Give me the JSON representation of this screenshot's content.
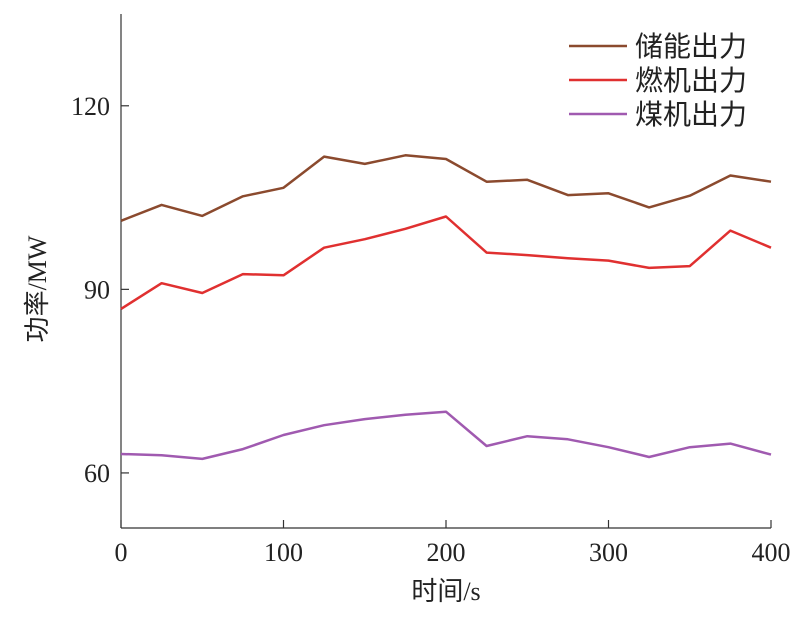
{
  "chart_data": {
    "type": "line",
    "title": "",
    "xlabel": "时间/s",
    "ylabel": "功率/MW",
    "xlim": [
      0,
      400
    ],
    "ylim": [
      51,
      135
    ],
    "xticks": [
      0,
      100,
      200,
      300,
      400
    ],
    "yticks": [
      60,
      90,
      120
    ],
    "grid": false,
    "legend_position": "top-right",
    "x": [
      0,
      25,
      50,
      75,
      100,
      125,
      150,
      175,
      200,
      225,
      250,
      275,
      300,
      325,
      350,
      375,
      400
    ],
    "series": [
      {
        "name": "储能出力",
        "color": "#8B4A2E",
        "values": [
          101.2,
          103.8,
          102.0,
          105.2,
          106.6,
          111.7,
          110.5,
          111.9,
          111.3,
          107.6,
          107.9,
          105.4,
          105.7,
          103.4,
          105.3,
          108.6,
          107.6
        ]
      },
      {
        "name": "燃机出力",
        "color": "#E03030",
        "values": [
          86.8,
          91.0,
          89.4,
          92.5,
          92.3,
          96.8,
          98.2,
          99.9,
          101.9,
          96.0,
          95.6,
          95.1,
          94.7,
          93.5,
          93.8,
          99.6,
          96.8
        ]
      },
      {
        "name": "煤机出力",
        "color": "#A05AB0",
        "values": [
          63.1,
          62.9,
          62.3,
          63.9,
          66.2,
          67.8,
          68.8,
          69.5,
          70.0,
          64.4,
          66.0,
          65.5,
          64.2,
          62.6,
          64.2,
          64.8,
          63.0
        ]
      }
    ]
  }
}
